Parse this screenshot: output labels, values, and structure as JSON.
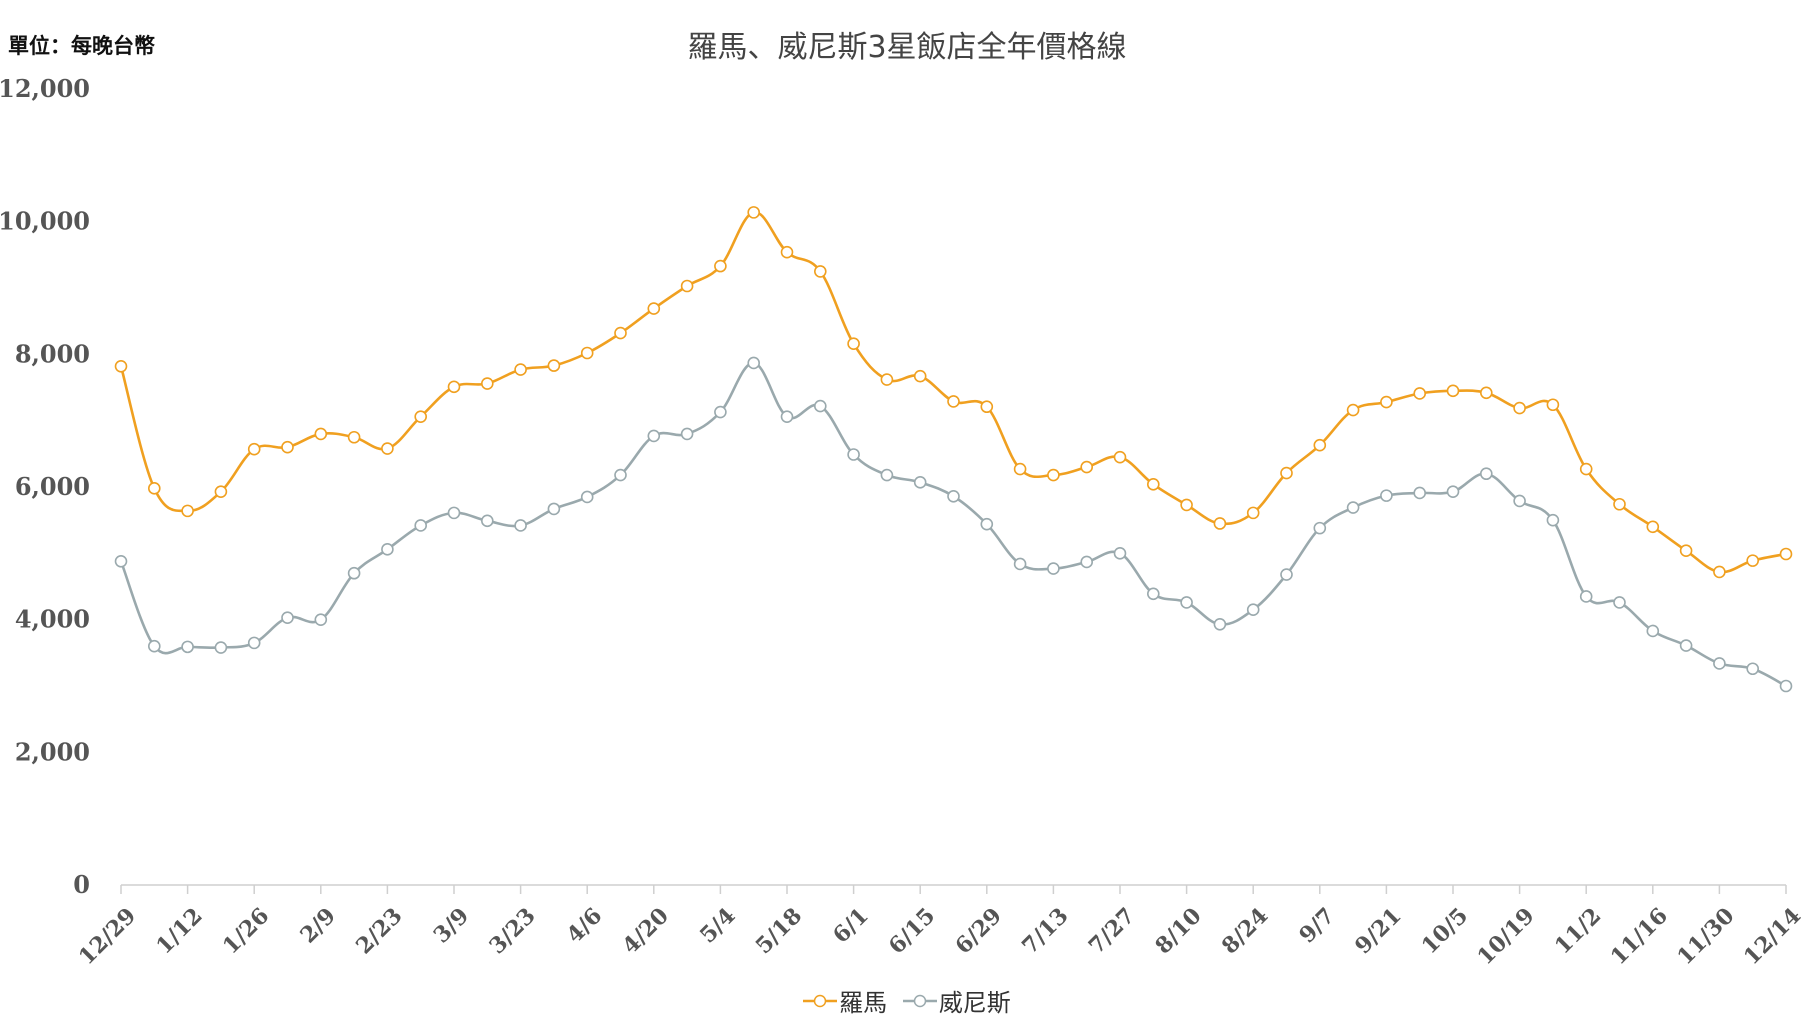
{
  "chart_data": {
    "type": "line",
    "title": "羅馬、威尼斯3星飯店全年價格線",
    "unit_label": "單位：每晚台幣",
    "ylim": [
      0,
      12000
    ],
    "y_ticks": [
      "0",
      "2,000",
      "4,000",
      "6,000",
      "8,000",
      "10,000",
      "12,000"
    ],
    "y_tick_values": [
      0,
      2000,
      4000,
      6000,
      8000,
      10000,
      12000
    ],
    "x_tick_labels": [
      "12/29",
      "1/12",
      "1/26",
      "2/9",
      "2/23",
      "3/9",
      "3/23",
      "4/6",
      "4/20",
      "5/4",
      "5/18",
      "6/1",
      "6/15",
      "6/29",
      "7/13",
      "7/27",
      "8/10",
      "8/24",
      "9/7",
      "9/21",
      "10/5",
      "10/19",
      "11/2",
      "11/16",
      "11/30",
      "12/14"
    ],
    "x": [
      "12/29",
      "1/5",
      "1/12",
      "1/19",
      "1/26",
      "2/2",
      "2/9",
      "2/16",
      "2/23",
      "3/2",
      "3/9",
      "3/16",
      "3/23",
      "3/30",
      "4/6",
      "4/13",
      "4/20",
      "4/27",
      "5/4",
      "5/11",
      "5/18",
      "5/25",
      "6/1",
      "6/8",
      "6/15",
      "6/22",
      "6/29",
      "7/6",
      "7/13",
      "7/20",
      "7/27",
      "8/3",
      "8/10",
      "8/17",
      "8/24",
      "8/31",
      "9/7",
      "9/14",
      "9/21",
      "9/28",
      "10/5",
      "10/12",
      "10/19",
      "10/26",
      "11/2",
      "11/9",
      "11/16",
      "11/23",
      "11/30",
      "12/7",
      "12/14"
    ],
    "grid": false,
    "legend_position": "bottom",
    "series": [
      {
        "name": "羅馬",
        "color": "#F0A020",
        "values": [
          7820,
          5980,
          5640,
          5930,
          6570,
          6600,
          6800,
          6750,
          6580,
          7060,
          7510,
          7560,
          7770,
          7830,
          8020,
          8320,
          8690,
          9030,
          9330,
          10140,
          9540,
          9250,
          8160,
          7620,
          7670,
          7290,
          7210,
          6270,
          6180,
          6300,
          6450,
          6040,
          5730,
          5450,
          5610,
          6210,
          6630,
          7160,
          7280,
          7410,
          7450,
          7420,
          7190,
          7240,
          6270,
          5740,
          5400,
          5040,
          4720,
          4890,
          4990
        ]
      },
      {
        "name": "威尼斯",
        "color": "#9AA9AD",
        "values": [
          4880,
          3600,
          3590,
          3580,
          3650,
          4030,
          4000,
          4700,
          5060,
          5420,
          5610,
          5490,
          5420,
          5670,
          5850,
          6180,
          6770,
          6800,
          7130,
          7870,
          7060,
          7220,
          6490,
          6180,
          6070,
          5860,
          5440,
          4840,
          4770,
          4870,
          5000,
          4390,
          4260,
          3930,
          4150,
          4680,
          5380,
          5690,
          5870,
          5910,
          5930,
          6200,
          5790,
          5500,
          4350,
          4260,
          3830,
          3610,
          3340,
          3260,
          3000
        ]
      }
    ]
  }
}
